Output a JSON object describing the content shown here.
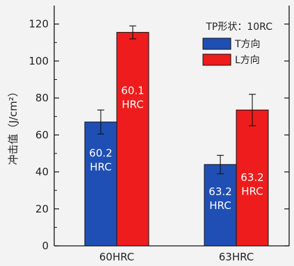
{
  "chart_data": {
    "type": "bar",
    "categories": [
      "60HRC",
      "63HRC"
    ],
    "series": [
      {
        "name": "T方向",
        "color": "#1f4fb4",
        "values": [
          67,
          44
        ],
        "errors": [
          6.5,
          5
        ],
        "bar_labels": [
          [
            "60.2",
            "HRC"
          ],
          [
            "63.2",
            "HRC"
          ]
        ]
      },
      {
        "name": "L方向",
        "color": "#ee1c1c",
        "values": [
          115.5,
          73.5
        ],
        "errors": [
          3.5,
          8.5
        ],
        "bar_labels": [
          [
            "60.1",
            "HRC"
          ],
          [
            "63.2",
            "HRC"
          ]
        ]
      }
    ],
    "ylabel": "冲击值（J/cm²）",
    "ylim": [
      0,
      130
    ],
    "yticks": [
      0,
      20,
      40,
      60,
      80,
      100,
      120
    ],
    "legend_title": "TP形状：10RC",
    "legend_position": "top-right",
    "grid": false
  }
}
